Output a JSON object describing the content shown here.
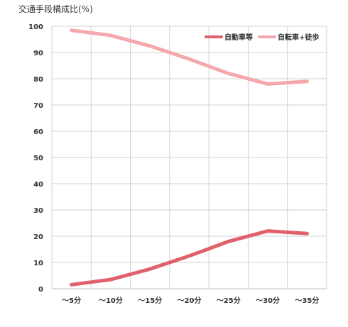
{
  "chart_data": {
    "type": "line",
    "title": "",
    "ylabel": "交通手段構成比(%)",
    "xlabel": "",
    "ylim": [
      0,
      100
    ],
    "yticks": [
      0,
      10,
      20,
      30,
      40,
      50,
      60,
      70,
      80,
      90,
      100
    ],
    "categories": [
      "〜5分",
      "〜10分",
      "〜15分",
      "〜20分",
      "〜25分",
      "〜30分",
      "〜35分"
    ],
    "series": [
      {
        "name": "自動車等",
        "color": "#e0616b",
        "values": [
          1.5,
          3.5,
          7.5,
          12.5,
          18,
          22,
          21
        ]
      },
      {
        "name": "自転車+徒歩",
        "color": "#f4a8ad",
        "values": [
          98.5,
          96.5,
          92.5,
          87.5,
          82,
          78,
          79
        ]
      }
    ],
    "grid": true,
    "legend_position": "top-right"
  }
}
